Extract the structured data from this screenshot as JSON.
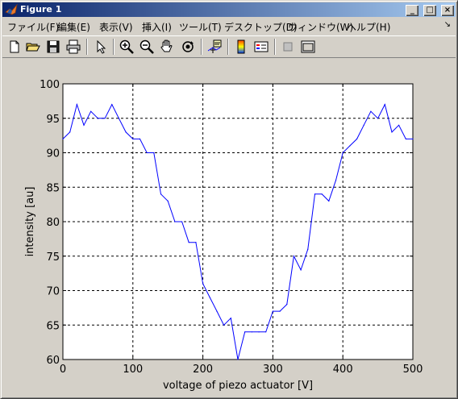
{
  "window": {
    "title": "Figure 1",
    "buttons": {
      "minimize": "_",
      "maximize": "□",
      "close": "×"
    }
  },
  "menu": {
    "items": [
      {
        "label": "ファイル(F)"
      },
      {
        "label": "編集(E)"
      },
      {
        "label": "表示(V)"
      },
      {
        "label": "挿入(I)"
      },
      {
        "label": "ツール(T)"
      },
      {
        "label": "デスクトップ(D)"
      },
      {
        "label": "ウィンドウ(W)"
      },
      {
        "label": "ヘルプ(H)"
      }
    ],
    "overflow_arrow": "↘"
  },
  "toolbar": {
    "icons": [
      "new-file-icon",
      "open-folder-icon",
      "save-icon",
      "print-icon",
      "arrow-select-icon",
      "zoom-in-icon",
      "zoom-out-icon",
      "pan-hand-icon",
      "rotate-3d-icon",
      "data-cursor-icon",
      "colorbar-icon",
      "legend-icon",
      "hide-plot-tools-icon",
      "show-plot-tools-icon"
    ]
  },
  "chart_data": {
    "type": "line",
    "xlabel": "voltage of piezo actuator [V]",
    "ylabel": "intensity [au]",
    "xlim": [
      0,
      500
    ],
    "ylim": [
      60,
      100
    ],
    "xticks": [
      0,
      100,
      200,
      300,
      400,
      500
    ],
    "yticks": [
      60,
      65,
      70,
      75,
      80,
      85,
      90,
      95,
      100
    ],
    "grid": true,
    "series": [
      {
        "color": "#0000ff",
        "x": [
          0,
          10,
          20,
          30,
          40,
          50,
          60,
          70,
          80,
          90,
          100,
          110,
          120,
          130,
          140,
          150,
          160,
          170,
          180,
          190,
          200,
          210,
          220,
          230,
          240,
          250,
          260,
          270,
          280,
          290,
          300,
          310,
          320,
          330,
          340,
          350,
          360,
          370,
          380,
          390,
          400,
          410,
          420,
          430,
          440,
          450,
          460,
          470,
          480,
          490,
          500
        ],
        "y": [
          92,
          93,
          97,
          94,
          96,
          95,
          95,
          97,
          95,
          93,
          92,
          92,
          90,
          90,
          84,
          83,
          80,
          80,
          77,
          77,
          71,
          69,
          67,
          65,
          66,
          60,
          64,
          64,
          64,
          64,
          67,
          67,
          68,
          75,
          73,
          76,
          84,
          84,
          83,
          86,
          90,
          91,
          92,
          94,
          96,
          95,
          97,
          93,
          94,
          92,
          92
        ]
      }
    ]
  }
}
